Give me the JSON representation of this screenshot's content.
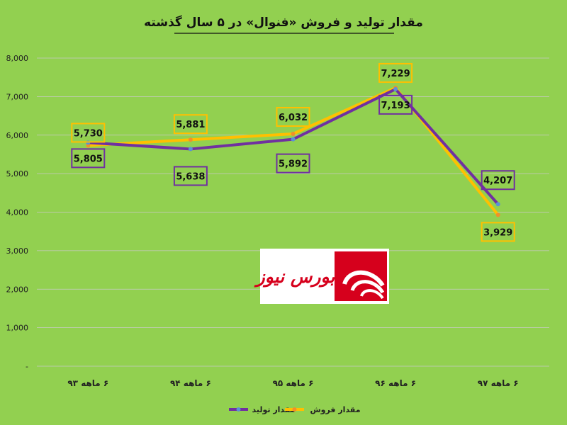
{
  "chart_data": {
    "type": "line",
    "title": "مقدار تولید و فروش «فنوال» در ۵ سال گذشته",
    "categories": [
      "۶ ماهه ۹۳",
      "۶ ماهه ۹۴",
      "۶ ماهه ۹۵",
      "۶ ماهه ۹۶",
      "۶ ماهه ۹۷"
    ],
    "series": [
      {
        "name": "مقدار تولید",
        "color": "#7030a0",
        "values": [
          5805,
          5638,
          5892,
          7193,
          4207
        ],
        "labels": [
          "5,805",
          "5,638",
          "5,892",
          "7,193",
          "4,207"
        ]
      },
      {
        "name": "مقدار فروش",
        "color": "#ffc000",
        "values": [
          5730,
          5881,
          6032,
          7229,
          3929
        ],
        "labels": [
          "5,730",
          "5,881",
          "6,032",
          "7,229",
          "3,929"
        ]
      }
    ],
    "ylim": [
      0,
      8000
    ],
    "yticks": [
      {
        "value": 0,
        "label": "-"
      },
      {
        "value": 1000,
        "label": "1,000"
      },
      {
        "value": 2000,
        "label": "2,000"
      },
      {
        "value": 3000,
        "label": "3,000"
      },
      {
        "value": 4000,
        "label": "4,000"
      },
      {
        "value": 5000,
        "label": "5,000"
      },
      {
        "value": 6000,
        "label": "6,000"
      },
      {
        "value": 7000,
        "label": "7,000"
      },
      {
        "value": 8000,
        "label": "8,000"
      }
    ],
    "grid": true,
    "legend_position": "bottom"
  },
  "watermark": {
    "text": "بورس نیوز",
    "brand_color": "#d6001c"
  }
}
